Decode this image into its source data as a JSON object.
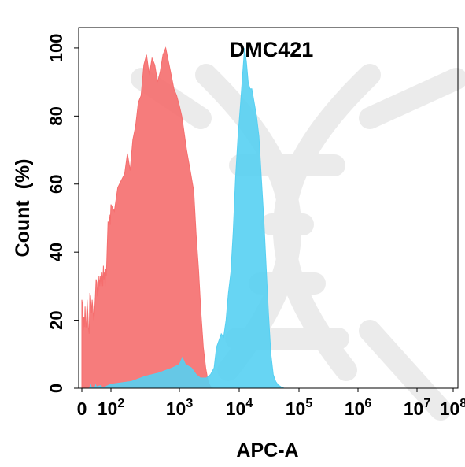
{
  "chart_data": {
    "type": "area",
    "title": "DMC421",
    "xlabel": "APC-A",
    "ylabel": "Count  (%)",
    "x_scale": "biexponential",
    "y_ticks": [
      "0",
      "20",
      "40",
      "60",
      "80",
      "100"
    ],
    "y_tick_values": [
      0,
      20,
      40,
      60,
      80,
      100
    ],
    "x_ticks": [
      {
        "base": "0",
        "exp": ""
      },
      {
        "base": "10",
        "exp": "2"
      },
      {
        "base": "10",
        "exp": "3"
      },
      {
        "base": "10",
        "exp": "4"
      },
      {
        "base": "10",
        "exp": "5"
      },
      {
        "base": "10",
        "exp": "6"
      },
      {
        "base": "10",
        "exp": "7"
      },
      {
        "base": "10",
        "exp": "8"
      }
    ],
    "x_tick_log_values": [
      0,
      2,
      3,
      4,
      5,
      6,
      7,
      8
    ],
    "ylim": [
      0,
      106
    ],
    "xlim_log": [
      0,
      8
    ],
    "series": [
      {
        "color": "#f56e6e",
        "points": [
          [
            0,
            26
          ],
          [
            0.03,
            25
          ],
          [
            0.06,
            22
          ],
          [
            0.1,
            17
          ],
          [
            0.14,
            21
          ],
          [
            0.18,
            18
          ],
          [
            0.22,
            24
          ],
          [
            0.27,
            18
          ],
          [
            0.31,
            18
          ],
          [
            0.36,
            26
          ],
          [
            0.41,
            22
          ],
          [
            0.45,
            18
          ],
          [
            0.5,
            16
          ],
          [
            0.55,
            28
          ],
          [
            0.6,
            27
          ],
          [
            0.66,
            22
          ],
          [
            0.71,
            26
          ],
          [
            0.76,
            23
          ],
          [
            0.82,
            20
          ],
          [
            0.88,
            23
          ],
          [
            0.93,
            27
          ],
          [
            0.98,
            32
          ],
          [
            1.03,
            31
          ],
          [
            1.08,
            27
          ],
          [
            1.13,
            29
          ],
          [
            1.18,
            33
          ],
          [
            1.23,
            30
          ],
          [
            1.28,
            33
          ],
          [
            1.34,
            30
          ],
          [
            1.39,
            34
          ],
          [
            1.44,
            30
          ],
          [
            1.48,
            36
          ],
          [
            1.52,
            32
          ],
          [
            1.56,
            34
          ],
          [
            1.6,
            30
          ],
          [
            1.64,
            35
          ],
          [
            1.68,
            33
          ],
          [
            1.72,
            38
          ],
          [
            1.76,
            44
          ],
          [
            1.8,
            49
          ],
          [
            1.85,
            48
          ],
          [
            1.9,
            51
          ],
          [
            1.95,
            48
          ],
          [
            2.0,
            54
          ],
          [
            2.05,
            52
          ],
          [
            2.1,
            59
          ],
          [
            2.15,
            61
          ],
          [
            2.2,
            63
          ],
          [
            2.24,
            69
          ],
          [
            2.28,
            64
          ],
          [
            2.32,
            73
          ],
          [
            2.36,
            77
          ],
          [
            2.4,
            84
          ],
          [
            2.44,
            86
          ],
          [
            2.48,
            95
          ],
          [
            2.52,
            98
          ],
          [
            2.56,
            92
          ],
          [
            2.6,
            97
          ],
          [
            2.64,
            95
          ],
          [
            2.68,
            90
          ],
          [
            2.72,
            93
          ],
          [
            2.76,
            98
          ],
          [
            2.8,
            100
          ],
          [
            2.84,
            96
          ],
          [
            2.88,
            92
          ],
          [
            2.92,
            88
          ],
          [
            2.96,
            86
          ],
          [
            3.0,
            83
          ],
          [
            3.04,
            80
          ],
          [
            3.08,
            75
          ],
          [
            3.12,
            70
          ],
          [
            3.16,
            66
          ],
          [
            3.2,
            62
          ],
          [
            3.24,
            58
          ],
          [
            3.28,
            45
          ],
          [
            3.32,
            35
          ],
          [
            3.36,
            22
          ],
          [
            3.4,
            12
          ],
          [
            3.44,
            6
          ],
          [
            3.48,
            2
          ],
          [
            3.52,
            0.5
          ],
          [
            3.56,
            0
          ]
        ]
      },
      {
        "color": "#56d0f2",
        "points": [
          [
            0.5,
            0
          ],
          [
            0.58,
            0.4
          ],
          [
            0.62,
            0.9
          ],
          [
            0.66,
            0.2
          ],
          [
            0.9,
            0.3
          ],
          [
            0.95,
            1.0
          ],
          [
            1.0,
            0.4
          ],
          [
            1.3,
            0.8
          ],
          [
            1.4,
            0.2
          ],
          [
            1.6,
            0.3
          ],
          [
            1.7,
            0.6
          ],
          [
            2.0,
            1.2
          ],
          [
            2.3,
            2
          ],
          [
            2.5,
            3.5
          ],
          [
            2.7,
            4.5
          ],
          [
            2.9,
            6
          ],
          [
            3.0,
            7
          ],
          [
            3.05,
            9
          ],
          [
            3.1,
            7
          ],
          [
            3.2,
            6
          ],
          [
            3.28,
            4
          ],
          [
            3.35,
            3
          ],
          [
            3.45,
            3
          ],
          [
            3.52,
            4
          ],
          [
            3.58,
            6
          ],
          [
            3.62,
            12
          ],
          [
            3.66,
            14
          ],
          [
            3.7,
            16
          ],
          [
            3.74,
            15
          ],
          [
            3.78,
            20
          ],
          [
            3.82,
            28
          ],
          [
            3.86,
            34
          ],
          [
            3.9,
            46
          ],
          [
            3.94,
            62
          ],
          [
            3.98,
            74
          ],
          [
            4.02,
            83
          ],
          [
            4.06,
            93
          ],
          [
            4.09,
            100
          ],
          [
            4.12,
            96
          ],
          [
            4.15,
            90
          ],
          [
            4.18,
            88
          ],
          [
            4.21,
            88
          ],
          [
            4.25,
            84
          ],
          [
            4.29,
            80
          ],
          [
            4.33,
            74
          ],
          [
            4.37,
            62
          ],
          [
            4.41,
            50
          ],
          [
            4.45,
            36
          ],
          [
            4.49,
            22
          ],
          [
            4.53,
            10
          ],
          [
            4.57,
            4
          ],
          [
            4.61,
            2
          ],
          [
            4.65,
            1
          ],
          [
            4.7,
            0.4
          ],
          [
            4.75,
            0
          ]
        ]
      }
    ],
    "fill_opacity": 0.9,
    "grid": false,
    "legend": "none"
  }
}
